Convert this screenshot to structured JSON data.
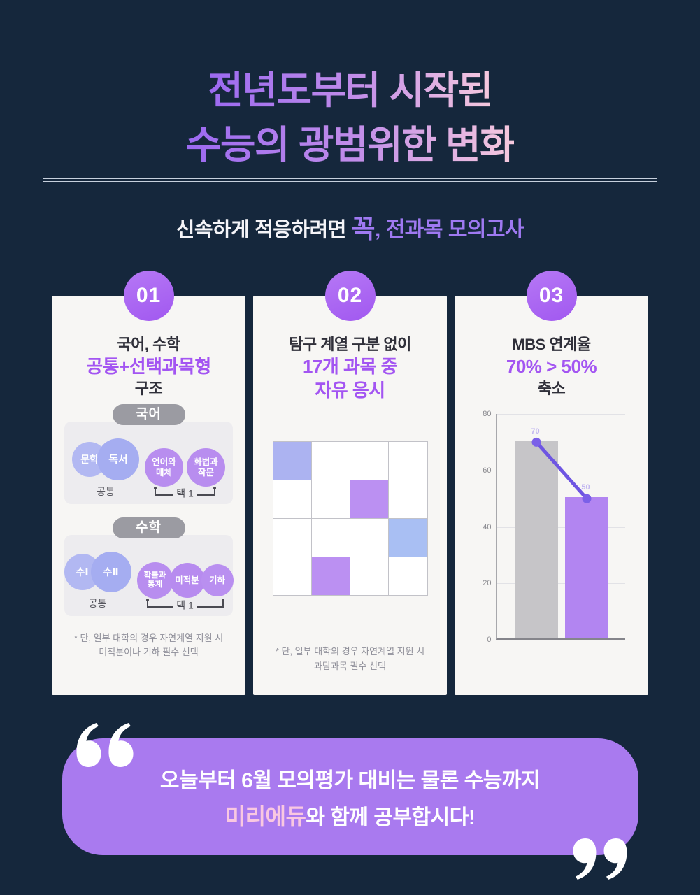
{
  "page": {
    "background": "#15273C",
    "accent_purple": "#A355F2",
    "accent_pink": "#F6C9DE"
  },
  "header": {
    "title_line1": "전년도부터 시작된",
    "title_line2": "수능의 광범위한 변화",
    "subtitle_prefix": "신속하게 적응하려면 ",
    "subtitle_emph": "꼭",
    "subtitle_suffix": ", 전과목 모의고사"
  },
  "cards": [
    {
      "badge": "01",
      "title_top": "국어, 수학",
      "title_emph": "공통+선택과목형",
      "title_bottom": "구조",
      "sections": [
        {
          "pill": "국어",
          "groups": [
            {
              "kind": "common",
              "label": "공통",
              "circles": [
                {
                  "lines": [
                    "문학"
                  ],
                  "size": 50,
                  "color": "#B2B8F2",
                  "font": 14
                },
                {
                  "lines": [
                    "독서"
                  ],
                  "size": 60,
                  "color": "#A5ADF1",
                  "font": 15,
                  "overlap": -14
                }
              ]
            },
            {
              "kind": "choice",
              "label": "택 1",
              "circles": [
                {
                  "lines": [
                    "언어와",
                    "매체"
                  ],
                  "size": 55,
                  "color": "#B88DEF",
                  "font": 12.5
                },
                {
                  "lines": [
                    "화법과",
                    "작문"
                  ],
                  "size": 55,
                  "color": "#B88DEF",
                  "font": 12.5,
                  "overlap": 5
                }
              ]
            }
          ]
        },
        {
          "pill": "수학",
          "groups": [
            {
              "kind": "common",
              "label": "공통",
              "circles": [
                {
                  "lines": [
                    "수Ⅰ"
                  ],
                  "size": 52,
                  "color": "#B2B8F2",
                  "font": 14
                },
                {
                  "lines": [
                    "수Ⅱ"
                  ],
                  "size": 58,
                  "color": "#A5ADF1",
                  "font": 14,
                  "overlap": -14
                }
              ]
            },
            {
              "kind": "choice",
              "label": "택 1",
              "circles": [
                {
                  "lines": [
                    "확률과",
                    "통계"
                  ],
                  "size": 52,
                  "color": "#B88DEF",
                  "font": 11.5
                },
                {
                  "lines": [
                    "미적분"
                  ],
                  "size": 50,
                  "color": "#B78BEF",
                  "font": 12.5,
                  "overlap": -5
                },
                {
                  "lines": [
                    "기하"
                  ],
                  "size": 46,
                  "color": "#B98FF0",
                  "font": 12.5,
                  "overlap": -5
                }
              ]
            }
          ]
        }
      ],
      "footnote1": "* 단, 일부 대학의 경우 자연계열 지원 시",
      "footnote2": "미적분이나 기하 필수 선택"
    },
    {
      "badge": "02",
      "title_top": "탐구 계열 구분 없이",
      "title_emph": "17개 과목 중",
      "title_emph2": "자유 응시",
      "grid": {
        "rows": 4,
        "cols": 4,
        "highlights": [
          {
            "row": 0,
            "col": 0,
            "color": "#ACB3F1"
          },
          {
            "row": 1,
            "col": 2,
            "color": "#BB90F2"
          },
          {
            "row": 2,
            "col": 3,
            "color": "#A9BFF3"
          },
          {
            "row": 3,
            "col": 1,
            "color": "#BB90F2"
          }
        ]
      },
      "footnote1": "* 단, 일부 대학의 경우 자연계열 지원 시",
      "footnote2": "과탐과목 필수 선택"
    },
    {
      "badge": "03",
      "title_top": "MBS 연계율",
      "title_emph": "70% > 50%",
      "title_bottom": "축소"
    }
  ],
  "chart_data": {
    "type": "bar",
    "title": "MBS 연계율 70% > 50% 축소",
    "values": [
      70,
      50
    ],
    "data_labels": [
      "70",
      "50"
    ],
    "bar_colors": [
      "#C6C5C8",
      "#B285F1"
    ],
    "line_overlay": {
      "values": [
        70,
        50
      ],
      "color": "#6E55E2",
      "point_color": "#7B60E8"
    },
    "ylim": [
      0,
      80
    ],
    "yticks": [
      0,
      20,
      40,
      60,
      80
    ],
    "grid": true,
    "legend": false,
    "xlabel": "",
    "ylabel": ""
  },
  "banner": {
    "line1": "오늘부터 6월 모의평가 대비는 물론 수능까지",
    "brand": "미리에듀",
    "line2_rest": "와 함께 공부합시다!"
  }
}
